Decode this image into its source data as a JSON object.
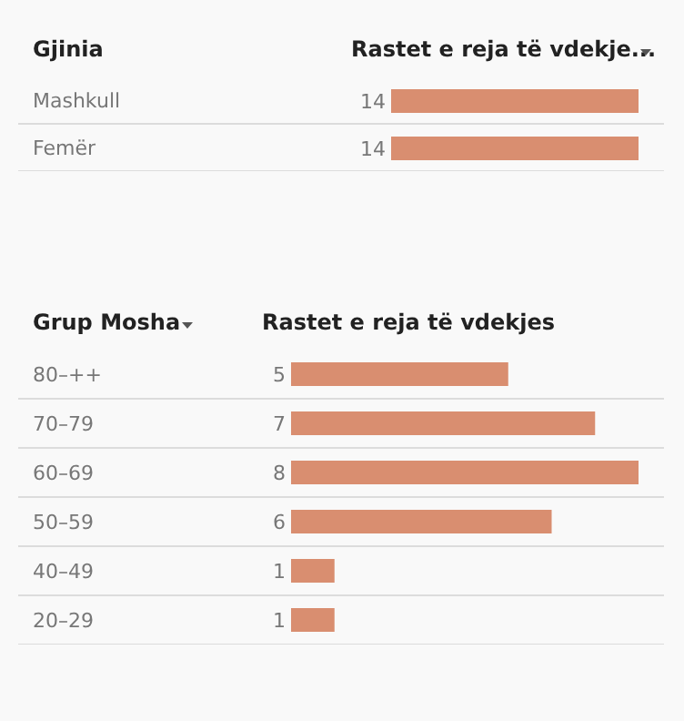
{
  "chart_data": [
    {
      "type": "bar",
      "orientation": "horizontal",
      "ylabel": "Gjinia",
      "xlabel": "Rastet e reja të vdekje...",
      "categories": [
        "Mashkull",
        "Femër"
      ],
      "values": [
        14,
        14
      ],
      "color": "#d98e70",
      "data_labels": true
    },
    {
      "type": "bar",
      "orientation": "horizontal",
      "ylabel": "Grup Mosha",
      "xlabel": "Rastet e reja të vdekjes",
      "categories": [
        "80–++",
        "70–79",
        "60–69",
        "50–59",
        "40–49",
        "20–29"
      ],
      "values": [
        5,
        7,
        8,
        6,
        1,
        1
      ],
      "color": "#d98e70",
      "data_labels": true
    }
  ]
}
